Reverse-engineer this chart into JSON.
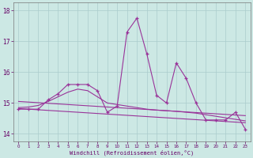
{
  "xlabel": "Windchill (Refroidissement éolien,°C)",
  "background_color": "#cce8e4",
  "grid_color": "#aacccc",
  "line_color": "#993399",
  "x_values": [
    0,
    1,
    2,
    3,
    4,
    5,
    6,
    7,
    8,
    9,
    10,
    11,
    12,
    13,
    14,
    15,
    16,
    17,
    18,
    19,
    20,
    21,
    22,
    23
  ],
  "y_main": [
    14.8,
    14.8,
    14.8,
    15.1,
    15.3,
    15.6,
    15.6,
    15.6,
    15.4,
    14.7,
    14.9,
    17.3,
    17.75,
    16.6,
    15.25,
    15.0,
    16.3,
    15.8,
    15.0,
    14.45,
    14.45,
    14.45,
    14.7,
    14.15
  ],
  "y_smooth": [
    14.85,
    14.87,
    14.92,
    15.05,
    15.2,
    15.35,
    15.45,
    15.4,
    15.2,
    15.0,
    14.95,
    14.9,
    14.85,
    14.8,
    14.77,
    14.75,
    14.73,
    14.7,
    14.67,
    14.62,
    14.57,
    14.52,
    14.47,
    14.42
  ],
  "y_trend1": [
    15.05,
    15.03,
    15.01,
    14.99,
    14.97,
    14.95,
    14.93,
    14.91,
    14.89,
    14.87,
    14.85,
    14.83,
    14.81,
    14.79,
    14.77,
    14.75,
    14.73,
    14.71,
    14.69,
    14.67,
    14.65,
    14.63,
    14.61,
    14.59
  ],
  "y_trend2": [
    14.82,
    14.8,
    14.78,
    14.76,
    14.74,
    14.72,
    14.7,
    14.68,
    14.66,
    14.64,
    14.62,
    14.6,
    14.58,
    14.56,
    14.54,
    14.52,
    14.5,
    14.48,
    14.46,
    14.44,
    14.42,
    14.4,
    14.38,
    14.36
  ],
  "ylim": [
    13.75,
    18.25
  ],
  "yticks": [
    14,
    15,
    16,
    17,
    18
  ],
  "xticks": [
    0,
    1,
    2,
    3,
    4,
    5,
    6,
    7,
    8,
    9,
    10,
    11,
    12,
    13,
    14,
    15,
    16,
    17,
    18,
    19,
    20,
    21,
    22,
    23
  ]
}
